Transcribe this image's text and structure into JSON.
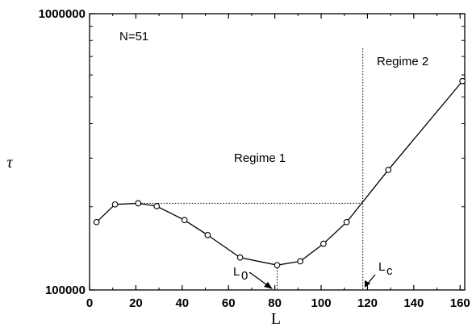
{
  "chart_data": {
    "type": "line",
    "title": "",
    "xlabel": "L",
    "ylabel": "τ",
    "xlim": [
      0,
      162
    ],
    "ylim": [
      100000,
      1000000
    ],
    "yscale": "log",
    "grid": false,
    "x_ticks": [
      0,
      20,
      40,
      60,
      80,
      100,
      120,
      140,
      160
    ],
    "x_tick_labels": [
      "0",
      "20",
      "40",
      "60",
      "80",
      "100",
      "120",
      "140",
      "160"
    ],
    "y_tick_labels": [
      "100000",
      "1000000"
    ],
    "y_tick_values": [
      100000,
      1000000
    ],
    "series": [
      {
        "x": [
          3,
          11,
          21,
          29,
          41,
          51,
          65,
          81,
          91,
          101,
          111,
          129,
          161
        ],
        "y": [
          176000,
          204000,
          206000,
          201000,
          179000,
          158000,
          131000,
          123000,
          127000,
          147000,
          176000,
          272000,
          570000
        ]
      }
    ],
    "annotations": {
      "n_label": "N=51",
      "regime1": "Regime 1",
      "regime2": "Regime 2",
      "l0_main": "L",
      "l0_sub": "0",
      "lc_main": "L",
      "lc_sub": "c"
    },
    "reference_lines": {
      "vertical_lc_x": 118,
      "vertical_l0_x": 81,
      "horizontal_y": 206000
    }
  }
}
